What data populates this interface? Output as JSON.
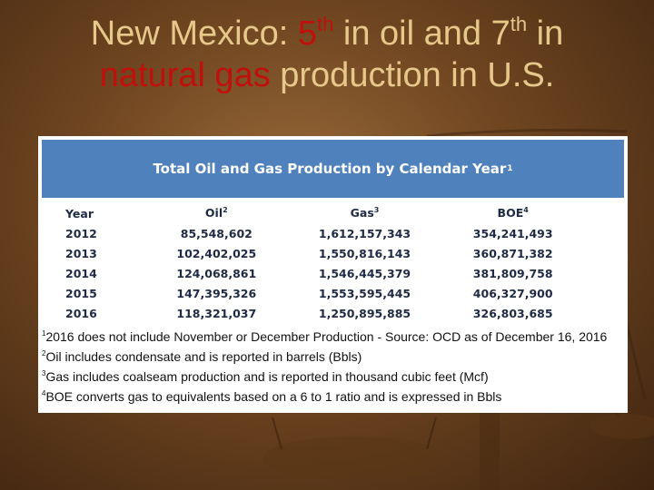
{
  "title": {
    "line1_part1": "New Mexico: ",
    "line1_num1": "5",
    "line1_sup1": "th",
    "line1_part2": " in oil and 7",
    "line1_sup2": "th",
    "line1_part3": " in",
    "line2_red": "natural gas",
    "line2_rest": " production in U.S."
  },
  "colors": {
    "title_text": "#e6c98a",
    "highlight_red": "#c0100c",
    "table_header_blue": "#4f81bd"
  },
  "table": {
    "heading": "Total Oil and Gas Production by Calendar Year",
    "heading_sup": "1",
    "columns": [
      {
        "label": "Year",
        "sup": ""
      },
      {
        "label": "Oil",
        "sup": "2"
      },
      {
        "label": "Gas",
        "sup": "3"
      },
      {
        "label": "BOE",
        "sup": "4"
      }
    ],
    "rows": [
      {
        "year": "2012",
        "oil": "85,548,602",
        "gas": "1,612,157,343",
        "boe": "354,241,493"
      },
      {
        "year": "2013",
        "oil": "102,402,025",
        "gas": "1,550,816,143",
        "boe": "360,871,382"
      },
      {
        "year": "2014",
        "oil": "124,068,861",
        "gas": "1,546,445,379",
        "boe": "381,809,758"
      },
      {
        "year": "2015",
        "oil": "147,395,326",
        "gas": "1,553,595,445",
        "boe": "406,327,900"
      },
      {
        "year": "2016",
        "oil": "118,321,037",
        "gas": "1,250,895,885",
        "boe": "326,803,685"
      }
    ]
  },
  "footnotes": [
    {
      "sup": "1",
      "text": "2016 does not include November or December Production - Source: OCD as of December 16, 2016"
    },
    {
      "sup": "2",
      "text": "Oil includes condensate and is reported in barrels (Bbls)"
    },
    {
      "sup": "3",
      "text": "Gas includes coalseam production and is reported in thousand cubic feet (Mcf)"
    },
    {
      "sup": "4",
      "text": "BOE converts gas to equivalents based on a 6 to 1 ratio and is expressed in Bbls"
    }
  ]
}
